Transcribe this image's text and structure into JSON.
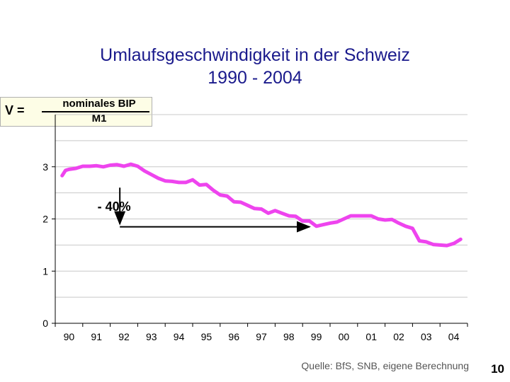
{
  "title_line1": "Umlaufsgeschwindigkeit in der Schweiz",
  "title_line2": "1990 - 2004",
  "formula": {
    "lhs": "V =",
    "numerator": "nominales BIP",
    "denominator": "M1"
  },
  "source": "Quelle: BfS, SNB, eigene Berechnung",
  "page_number": "10",
  "colors": {
    "series": "#ee44ee",
    "title": "#1a1a8c",
    "grid": "#c8c8c8"
  },
  "chart_data": {
    "type": "line",
    "title": "Umlaufsgeschwindigkeit in der Schweiz 1990 - 2004",
    "xlabel": "",
    "ylabel": "",
    "x_tick_labels": [
      "90",
      "91",
      "92",
      "93",
      "94",
      "95",
      "96",
      "97",
      "98",
      "99",
      "00",
      "01",
      "02",
      "03",
      "04"
    ],
    "y_tick_labels": [
      "0",
      "1",
      "2",
      "3"
    ],
    "ylim": [
      0,
      4
    ],
    "grid": true,
    "series": [
      {
        "color": "#ee44ee",
        "x": [
          1990.0,
          1990.125,
          1990.25,
          1990.5,
          1990.75,
          1991.0,
          1991.25,
          1991.5,
          1991.75,
          1992.0,
          1992.25,
          1992.5,
          1992.75,
          1993.0,
          1993.25,
          1993.5,
          1993.75,
          1994.0,
          1994.25,
          1994.5,
          1994.75,
          1995.0,
          1995.25,
          1995.5,
          1995.75,
          1996.0,
          1996.25,
          1996.5,
          1996.75,
          1997.0,
          1997.25,
          1997.5,
          1997.75,
          1998.0,
          1998.25,
          1998.5,
          1998.75,
          1999.0,
          1999.25,
          1999.5,
          1999.75,
          2000.0,
          2000.25,
          2000.5,
          2000.75,
          2001.0,
          2001.25,
          2001.5,
          2001.75,
          2002.0,
          2002.25,
          2002.5,
          2002.75,
          2003.0,
          2003.25,
          2003.5,
          2003.75,
          2004.0,
          2004.25,
          2004.5
        ],
        "values": [
          2.83,
          2.93,
          2.95,
          2.97,
          3.01,
          3.01,
          3.02,
          3.0,
          3.03,
          3.04,
          3.01,
          3.05,
          3.01,
          2.92,
          2.85,
          2.78,
          2.73,
          2.72,
          2.7,
          2.7,
          2.75,
          2.65,
          2.66,
          2.55,
          2.46,
          2.44,
          2.33,
          2.32,
          2.26,
          2.2,
          2.19,
          2.11,
          2.16,
          2.11,
          2.06,
          2.05,
          1.96,
          1.96,
          1.86,
          1.89,
          1.92,
          1.94,
          2.0,
          2.06,
          2.06,
          2.06,
          2.06,
          2.0,
          1.98,
          1.99,
          1.92,
          1.86,
          1.82,
          1.58,
          1.56,
          1.51,
          1.5,
          1.49,
          1.53,
          1.61
        ]
      }
    ],
    "annotations": [
      {
        "text": "- 40%",
        "x": 1992.1,
        "y": 2.15
      }
    ],
    "arrow": {
      "x_from": 1992.1,
      "x_to": 1999.0,
      "y_top": 2.6,
      "y": 1.85
    }
  }
}
